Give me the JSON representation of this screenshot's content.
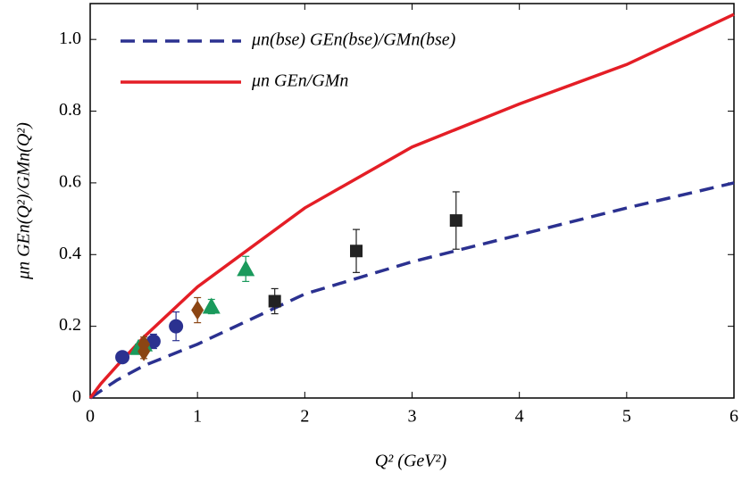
{
  "chart_data": {
    "type": "line",
    "xlabel": "Q² (GeV²)",
    "ylabel": "μn GEn(Q²)/GMn(Q²)",
    "xlim": [
      0,
      6
    ],
    "ylim": [
      0,
      1.1
    ],
    "xticks": [
      0,
      1,
      2,
      3,
      4,
      5,
      6
    ],
    "yticks": [
      0,
      0.2,
      0.4,
      0.6,
      0.8,
      {
        "value": 1,
        "label": "1.0"
      }
    ],
    "legend": "top-left",
    "series": [
      {
        "name": "μn(bse) GEn(bse)/GMn(bse)",
        "color": "#2b3190",
        "style": "dashed",
        "x": [
          0,
          0.25,
          0.5,
          1,
          2,
          3,
          4,
          5,
          6
        ],
        "values": [
          0,
          0.05,
          0.09,
          0.15,
          0.29,
          0.38,
          0.455,
          0.53,
          0.6
        ]
      },
      {
        "name": "μn GEn/GMn",
        "color": "#e41e26",
        "style": "solid",
        "x": [
          0,
          0.1,
          0.25,
          0.5,
          1,
          2,
          3,
          4,
          5,
          6
        ],
        "values": [
          0,
          0.04,
          0.09,
          0.17,
          0.31,
          0.53,
          0.7,
          0.82,
          0.93,
          1.07
        ]
      },
      {
        "color": "#2b3190",
        "marker": "circle",
        "x": [
          0.3,
          0.59,
          0.8
        ],
        "values": [
          0.114,
          0.158,
          0.2
        ],
        "errors": [
          0.01,
          0.02,
          0.04
        ]
      },
      {
        "color": "#1a9a5c",
        "marker": "triangle",
        "x": [
          0.45,
          0.5,
          1.13,
          1.45
        ],
        "values": [
          0.14,
          0.15,
          0.255,
          0.36
        ],
        "errors": [
          0.01,
          0.01,
          0.02,
          0.035
        ]
      },
      {
        "color": "#8b4513",
        "marker": "diamond",
        "x": [
          0.5,
          0.5,
          1.0
        ],
        "values": [
          0.13,
          0.15,
          0.245
        ],
        "errors": [
          0.02,
          0.02,
          0.035
        ]
      },
      {
        "color": "#222222",
        "marker": "square",
        "x": [
          1.72,
          2.48,
          3.41
        ],
        "values": [
          0.27,
          0.41,
          0.495
        ],
        "errors": [
          0.035,
          0.06,
          0.08
        ]
      }
    ]
  }
}
